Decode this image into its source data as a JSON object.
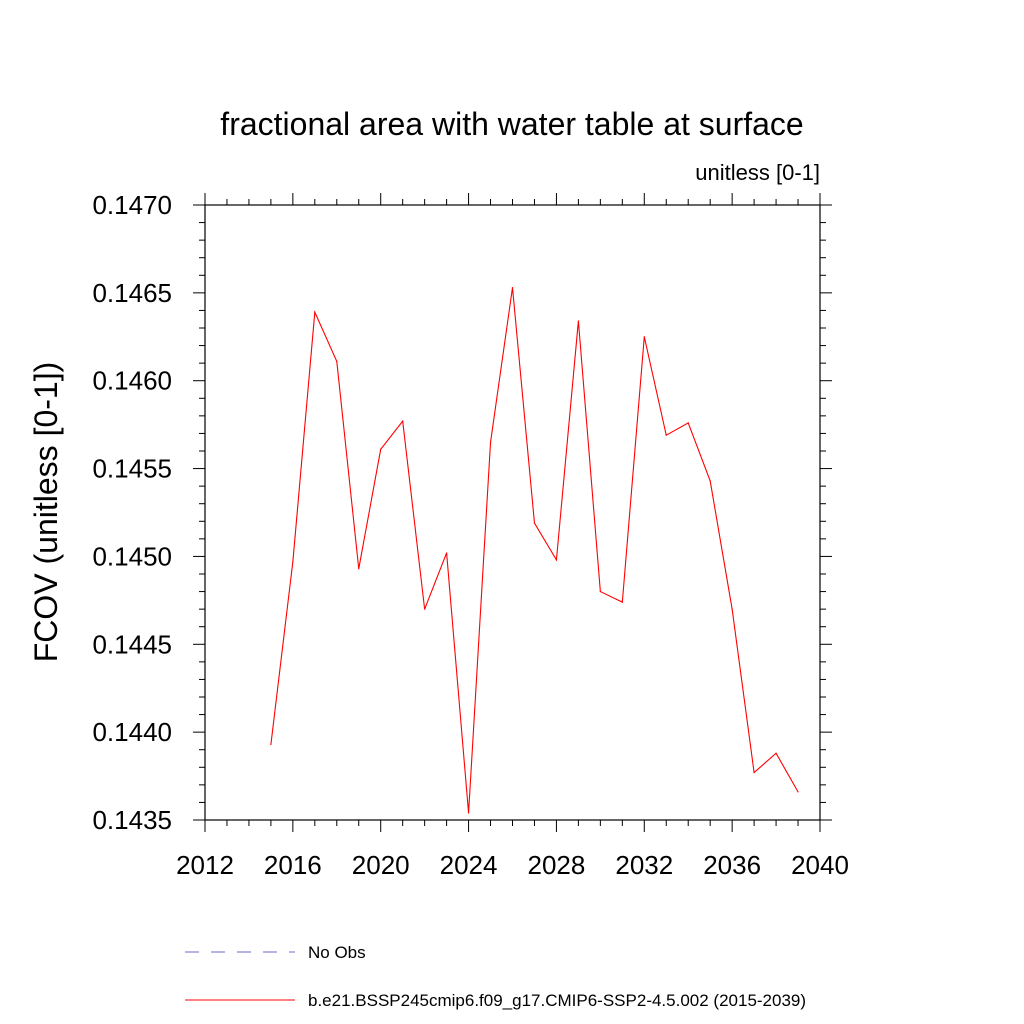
{
  "chart_data": {
    "type": "line",
    "title": "fractional area with water table at surface",
    "subtitle": "unitless [0-1]",
    "ylabel": "FCOV  (unitless [0-1])",
    "xlabel": "",
    "xlim": [
      2012,
      2040
    ],
    "ylim": [
      0.1435,
      0.147
    ],
    "x_ticks": [
      2012,
      2016,
      2020,
      2024,
      2028,
      2032,
      2036,
      2040
    ],
    "x_tick_labels": [
      "2012",
      "2016",
      "2020",
      "2024",
      "2028",
      "2032",
      "2036",
      "2040"
    ],
    "y_ticks": [
      0.1435,
      0.144,
      0.1445,
      0.145,
      0.1455,
      0.146,
      0.1465,
      0.147
    ],
    "y_tick_labels": [
      "0.1435",
      "0.1440",
      "0.1445",
      "0.1450",
      "0.1455",
      "0.1460",
      "0.1465",
      "0.1470"
    ],
    "grid": false,
    "legend_position": "bottom",
    "series": [
      {
        "name": "No Obs",
        "color": "#6a6acd",
        "dash": "dashed",
        "x": [],
        "values": []
      },
      {
        "name": "b.e21.BSSP245cmip6.f09_g17.CMIP6-SSP2-4.5.002 (2015-2039)",
        "color": "#ff0000",
        "dash": "solid",
        "x": [
          2015,
          2016,
          2017,
          2018,
          2019,
          2020,
          2021,
          2022,
          2023,
          2024,
          2025,
          2026,
          2027,
          2028,
          2029,
          2030,
          2031,
          2032,
          2033,
          2034,
          2035,
          2036,
          2037,
          2038,
          2039
        ],
        "values": [
          0.14393,
          0.14497,
          0.14639,
          0.14611,
          0.14493,
          0.14561,
          0.14577,
          0.1447,
          0.14502,
          0.14354,
          0.14565,
          0.14653,
          0.14519,
          0.14498,
          0.14634,
          0.1448,
          0.14474,
          0.14625,
          0.14569,
          0.14576,
          0.14543,
          0.1447,
          0.14377,
          0.14388,
          0.14366
        ]
      }
    ]
  }
}
